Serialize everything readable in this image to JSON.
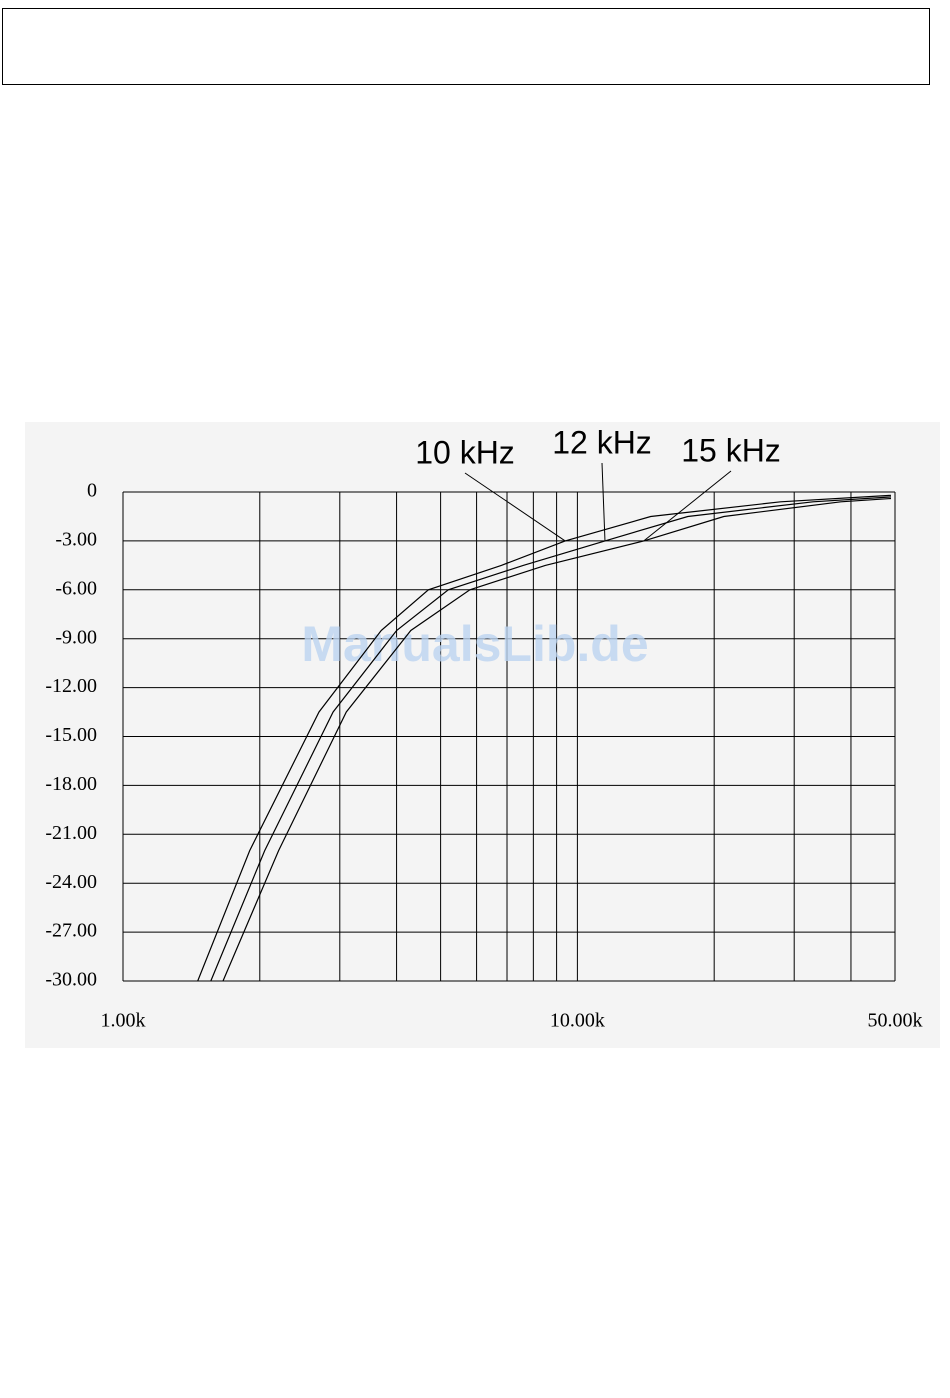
{
  "watermark": "ManualsLib.de",
  "chart_data": {
    "type": "line",
    "xscale": "log",
    "grid": true,
    "color": "#000000",
    "xlim": [
      1000,
      50000
    ],
    "xticks": [
      {
        "value": 1000,
        "label": "1.00k"
      },
      {
        "value": 10000,
        "label": "10.00k"
      },
      {
        "value": 50000,
        "label": "50.00k"
      }
    ],
    "minor_xticks": [
      2000,
      3000,
      4000,
      5000,
      6000,
      7000,
      8000,
      9000,
      20000,
      30000,
      40000
    ],
    "ylim": [
      -30,
      0
    ],
    "yticks": [
      0,
      {
        "value": -3,
        "label": "-3.00"
      },
      {
        "value": -6,
        "label": "-6.00"
      },
      {
        "value": -9,
        "label": "-9.00"
      },
      {
        "value": -12,
        "label": "-12.00"
      },
      {
        "value": -15,
        "label": "-15.00"
      },
      {
        "value": -18,
        "label": "-18.00"
      },
      {
        "value": -21,
        "label": "-21.00"
      },
      {
        "value": -24,
        "label": "-24.00"
      },
      {
        "value": -27,
        "label": "-27.00"
      },
      {
        "value": -30,
        "label": "-30.00"
      }
    ],
    "series": [
      {
        "name": "10 kHz",
        "color": "#000000",
        "x": [
          1460,
          1900,
          2700,
          3700,
          4700,
          6800,
          9400,
          14500,
          28000,
          49000
        ],
        "values": [
          -30,
          -22,
          -13.5,
          -8.5,
          -6,
          -4.5,
          -3,
          -1.5,
          -0.6,
          -0.2
        ]
      },
      {
        "name": "12 kHz",
        "color": "#000000",
        "x": [
          1560,
          2050,
          2900,
          4000,
          5200,
          7600,
          11500,
          17500,
          33000,
          49000
        ],
        "values": [
          -30,
          -22,
          -13.5,
          -8.5,
          -6,
          -4.5,
          -3,
          -1.5,
          -0.6,
          -0.3
        ]
      },
      {
        "name": "15 kHz",
        "color": "#000000",
        "x": [
          1660,
          2200,
          3100,
          4300,
          5800,
          8500,
          14000,
          21000,
          38000,
          49000
        ],
        "values": [
          -30,
          -22,
          -13.5,
          -8.5,
          -6,
          -4.5,
          -3,
          -1.5,
          -0.6,
          -0.4
        ]
      }
    ]
  }
}
